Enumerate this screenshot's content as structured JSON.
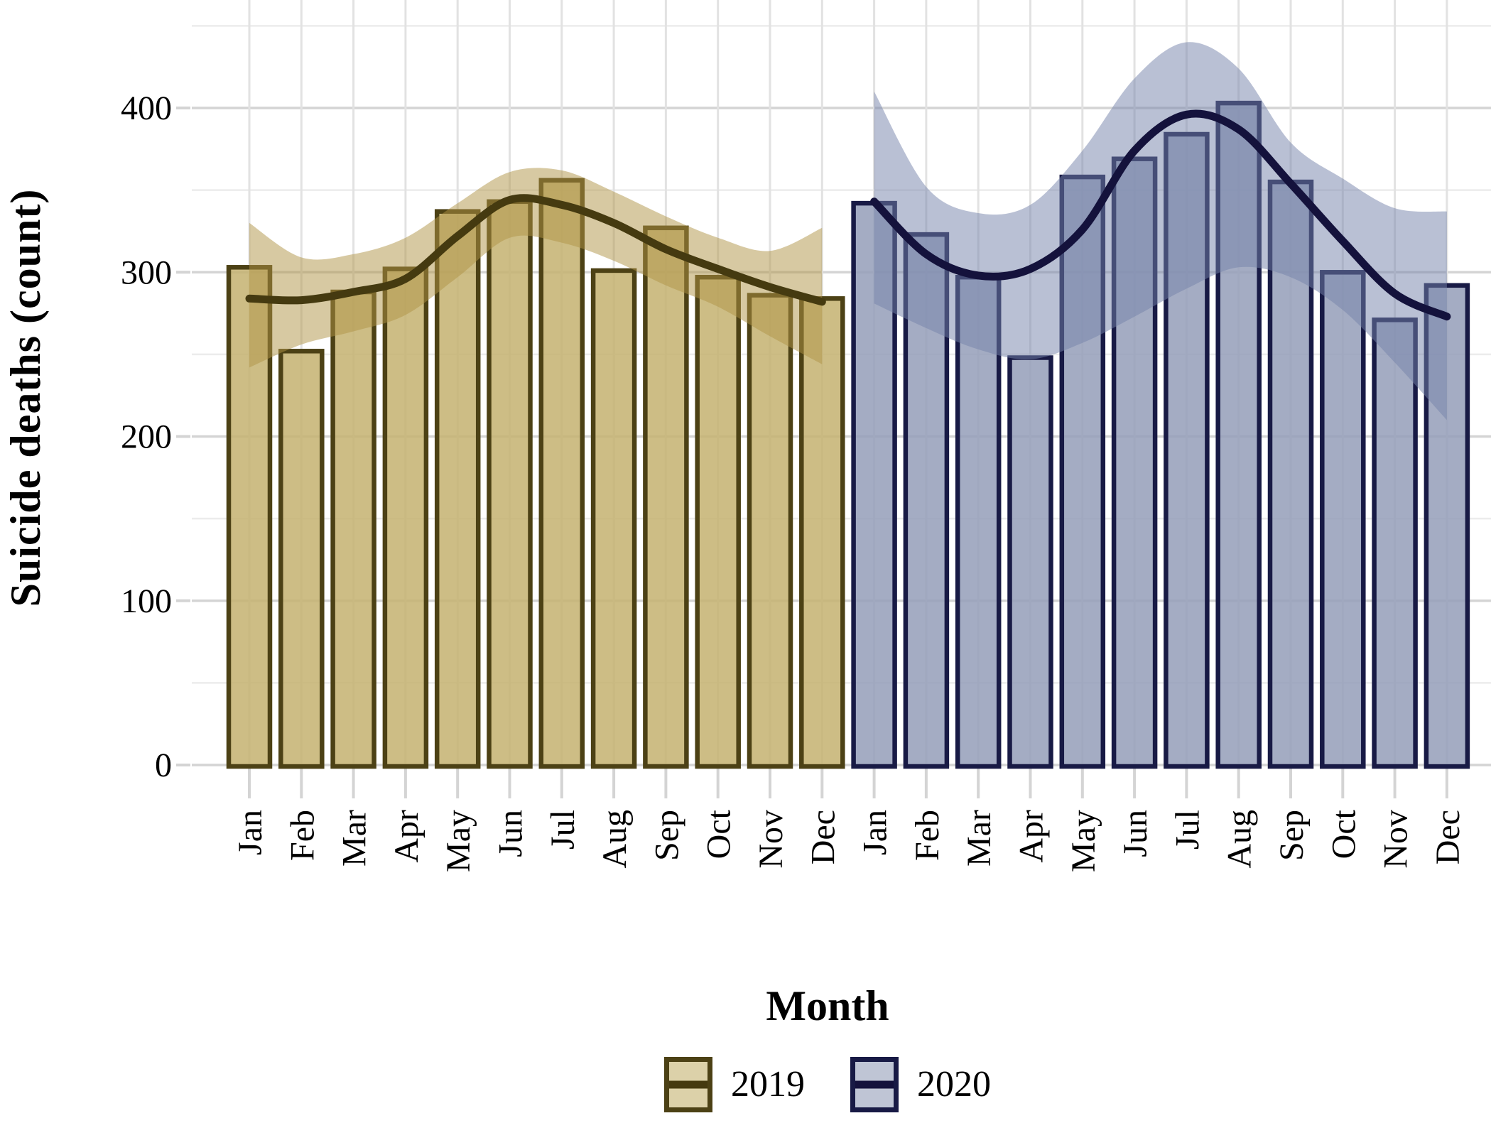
{
  "chart_data": {
    "type": "bar",
    "subtype": "bars-with-smoothed-trend-line-and-confidence-band",
    "title": "",
    "xlabel": "Month",
    "ylabel": "Suicide deaths (count)",
    "month_labels": [
      "Jan",
      "Feb",
      "Mar",
      "Apr",
      "May",
      "Jun",
      "Jul",
      "Aug",
      "Sep",
      "Oct",
      "Nov",
      "Dec"
    ],
    "y_axis": {
      "ticks": [
        0,
        100,
        200,
        300,
        400
      ],
      "tick_labels": [
        "0",
        "100",
        "200",
        "300",
        "400"
      ],
      "minor_ticks": [
        50,
        150,
        250,
        350,
        450
      ],
      "ylim": [
        0,
        465
      ]
    },
    "grid": "major+minor, horizontal and vertical, light grey, no panel border",
    "legend_position": "bottom-center",
    "series": [
      {
        "name": "2019",
        "bar_values": [
          303,
          252,
          288,
          302,
          337,
          343,
          356,
          301,
          327,
          297,
          286,
          284
        ],
        "line_values": [
          284,
          283,
          288,
          296,
          322,
          344,
          341,
          330,
          314,
          302,
          291,
          282
        ],
        "band_upper": [
          330,
          309,
          311,
          321,
          342,
          361,
          362,
          349,
          334,
          321,
          313,
          327
        ],
        "band_lower": [
          242,
          256,
          264,
          274,
          297,
          321,
          318,
          307,
          292,
          279,
          261,
          244
        ],
        "colors": {
          "bar_fill": "rgba(196,178,112,0.85)",
          "bar_stroke": "#4c4115",
          "band_fill": "rgba(176,148,69,0.5)",
          "line": "#453a10"
        }
      },
      {
        "name": "2020",
        "bar_values": [
          342,
          323,
          297,
          248,
          358,
          369,
          384,
          403,
          355,
          300,
          271,
          292
        ],
        "line_values": [
          343,
          311,
          298,
          302,
          326,
          374,
          396,
          387,
          354,
          319,
          287,
          273
        ],
        "band_upper": [
          410,
          352,
          336,
          341,
          374,
          418,
          440,
          424,
          379,
          357,
          339,
          337
        ],
        "band_lower": [
          281,
          266,
          253,
          247,
          257,
          273,
          290,
          303,
          297,
          277,
          245,
          210
        ],
        "colors": {
          "bar_fill": "rgba(148,158,185,0.85)",
          "bar_stroke": "#181a45",
          "band_fill": "rgba(115,129,169,0.5)",
          "line": "#14123c"
        }
      }
    ],
    "style_colors": {
      "grid_major": "#d4d4d4",
      "grid_minor": "#ececec",
      "axis_tick": "#d4d4d4",
      "text": "#000000",
      "background": "#ffffff"
    }
  }
}
